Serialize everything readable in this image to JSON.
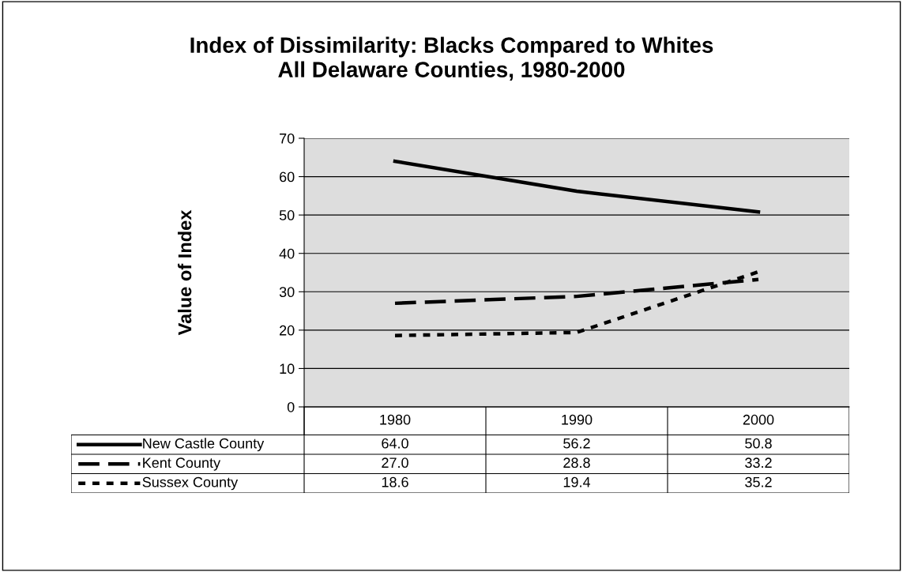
{
  "chart_data": {
    "type": "line",
    "title": "Index of Dissimilarity: Blacks Compared to Whites\nAll Delaware Counties, 1980-2000",
    "ylabel": "Value of Index",
    "categories": [
      "1980",
      "1990",
      "2000"
    ],
    "series": [
      {
        "name": "New Castle County",
        "color": "#000000",
        "line_style": "solid",
        "values": [
          64.0,
          56.2,
          50.8
        ],
        "value_labels": [
          "64.0",
          "56.2",
          "50.8"
        ]
      },
      {
        "name": "Kent County",
        "color": "#000000",
        "line_style": "dashed",
        "values": [
          27.0,
          28.8,
          33.2
        ],
        "value_labels": [
          "27.0",
          "28.8",
          "33.2"
        ]
      },
      {
        "name": "Sussex County",
        "color": "#000000",
        "line_style": "dotted",
        "values": [
          18.6,
          19.4,
          35.2
        ],
        "value_labels": [
          "18.6",
          "19.4",
          "35.2"
        ]
      }
    ],
    "ylim": [
      0,
      70
    ],
    "yticks": [
      0,
      10,
      20,
      30,
      40,
      50,
      60,
      70
    ],
    "grid": "y",
    "legend": "bottom",
    "marker": "none"
  }
}
